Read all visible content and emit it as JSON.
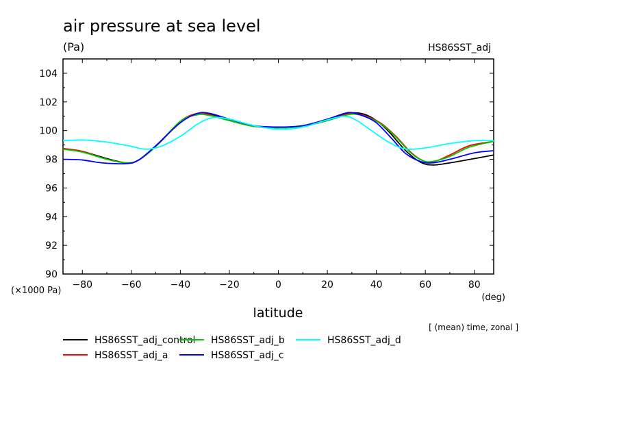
{
  "chart_data": {
    "type": "line",
    "title": "air pressure at sea level",
    "units": "(Pa)",
    "corner_label": "HS86SST_adj",
    "xlabel": "latitude",
    "xunit": "(deg)",
    "yscale_label": "(×1000 Pa)",
    "note": "[ (mean) time, zonal ]",
    "xlim": [
      -87.9,
      87.9
    ],
    "ylim": [
      90,
      105
    ],
    "xticks": [
      -80,
      -60,
      -40,
      -20,
      0,
      20,
      40,
      60,
      80
    ],
    "xtick_labels": [
      "−80",
      "−60",
      "−40",
      "−20",
      "0",
      "20",
      "40",
      "60",
      "80"
    ],
    "yticks": [
      90,
      92,
      94,
      96,
      98,
      100,
      102,
      104
    ],
    "ytick_labels": [
      "90",
      "92",
      "94",
      "96",
      "98",
      "100",
      "102",
      "104"
    ],
    "grid": false,
    "legend_position": "bottom",
    "series": [
      {
        "name": "HS86SST_adj_control",
        "color": "#000000",
        "points": [
          [
            -87.9,
            98.75
          ],
          [
            -80,
            98.55
          ],
          [
            -70,
            98.05
          ],
          [
            -62,
            97.75
          ],
          [
            -57,
            97.95
          ],
          [
            -50,
            98.9
          ],
          [
            -40,
            100.6
          ],
          [
            -33,
            101.2
          ],
          [
            -28,
            101.15
          ],
          [
            -20,
            100.75
          ],
          [
            -10,
            100.3
          ],
          [
            0,
            100.2
          ],
          [
            10,
            100.3
          ],
          [
            20,
            100.75
          ],
          [
            27,
            101.15
          ],
          [
            30,
            101.25
          ],
          [
            35,
            101.15
          ],
          [
            40,
            100.7
          ],
          [
            45,
            99.95
          ],
          [
            52,
            98.6
          ],
          [
            58,
            97.8
          ],
          [
            63,
            97.6
          ],
          [
            70,
            97.75
          ],
          [
            80,
            98.05
          ],
          [
            87.9,
            98.3
          ]
        ]
      },
      {
        "name": "HS86SST_adj_a",
        "color": "#ff0000",
        "points": [
          [
            -87.9,
            98.75
          ],
          [
            -80,
            98.55
          ],
          [
            -70,
            98.0
          ],
          [
            -62,
            97.75
          ],
          [
            -57,
            97.95
          ],
          [
            -50,
            98.9
          ],
          [
            -40,
            100.65
          ],
          [
            -33,
            101.2
          ],
          [
            -28,
            101.1
          ],
          [
            -20,
            100.7
          ],
          [
            -10,
            100.3
          ],
          [
            0,
            100.2
          ],
          [
            10,
            100.3
          ],
          [
            20,
            100.7
          ],
          [
            27,
            101.1
          ],
          [
            31,
            101.2
          ],
          [
            36,
            101.0
          ],
          [
            42,
            100.5
          ],
          [
            48,
            99.6
          ],
          [
            54,
            98.5
          ],
          [
            59,
            97.9
          ],
          [
            63,
            97.8
          ],
          [
            70,
            98.3
          ],
          [
            78,
            98.95
          ],
          [
            87.9,
            99.25
          ]
        ]
      },
      {
        "name": "HS86SST_adj_b",
        "color": "#00c800",
        "points": [
          [
            -87.9,
            98.7
          ],
          [
            -80,
            98.5
          ],
          [
            -70,
            98.0
          ],
          [
            -62,
            97.75
          ],
          [
            -57,
            97.95
          ],
          [
            -50,
            98.9
          ],
          [
            -40,
            100.65
          ],
          [
            -33,
            101.1
          ],
          [
            -28,
            101.05
          ],
          [
            -20,
            100.7
          ],
          [
            -10,
            100.3
          ],
          [
            0,
            100.2
          ],
          [
            10,
            100.3
          ],
          [
            20,
            100.7
          ],
          [
            27,
            101.05
          ],
          [
            31,
            101.15
          ],
          [
            36,
            100.95
          ],
          [
            42,
            100.45
          ],
          [
            48,
            99.55
          ],
          [
            54,
            98.45
          ],
          [
            59,
            97.9
          ],
          [
            63,
            97.85
          ],
          [
            70,
            98.2
          ],
          [
            78,
            98.85
          ],
          [
            87.9,
            99.25
          ]
        ]
      },
      {
        "name": "HS86SST_adj_c",
        "color": "#0000ff",
        "points": [
          [
            -87.9,
            98.0
          ],
          [
            -80,
            97.95
          ],
          [
            -72,
            97.75
          ],
          [
            -62,
            97.7
          ],
          [
            -57,
            97.95
          ],
          [
            -50,
            98.95
          ],
          [
            -40,
            100.55
          ],
          [
            -33,
            101.2
          ],
          [
            -28,
            101.2
          ],
          [
            -20,
            100.8
          ],
          [
            -10,
            100.35
          ],
          [
            0,
            100.25
          ],
          [
            10,
            100.35
          ],
          [
            20,
            100.8
          ],
          [
            27,
            101.2
          ],
          [
            30,
            101.25
          ],
          [
            35,
            101.0
          ],
          [
            40,
            100.55
          ],
          [
            46,
            99.5
          ],
          [
            52,
            98.4
          ],
          [
            58,
            97.85
          ],
          [
            63,
            97.75
          ],
          [
            70,
            98.0
          ],
          [
            80,
            98.45
          ],
          [
            87.9,
            98.6
          ]
        ]
      },
      {
        "name": "HS86SST_adj_d",
        "color": "#00ffff",
        "points": [
          [
            -87.9,
            99.3
          ],
          [
            -80,
            99.35
          ],
          [
            -70,
            99.2
          ],
          [
            -60,
            98.9
          ],
          [
            -54,
            98.7
          ],
          [
            -48,
            98.9
          ],
          [
            -40,
            99.6
          ],
          [
            -33,
            100.45
          ],
          [
            -27,
            100.9
          ],
          [
            -20,
            100.8
          ],
          [
            -10,
            100.35
          ],
          [
            0,
            100.1
          ],
          [
            10,
            100.25
          ],
          [
            20,
            100.75
          ],
          [
            27,
            101.0
          ],
          [
            32,
            100.7
          ],
          [
            38,
            100.0
          ],
          [
            44,
            99.3
          ],
          [
            50,
            98.8
          ],
          [
            55,
            98.7
          ],
          [
            62,
            98.85
          ],
          [
            70,
            99.1
          ],
          [
            80,
            99.3
          ],
          [
            87.9,
            99.3
          ]
        ]
      }
    ]
  }
}
